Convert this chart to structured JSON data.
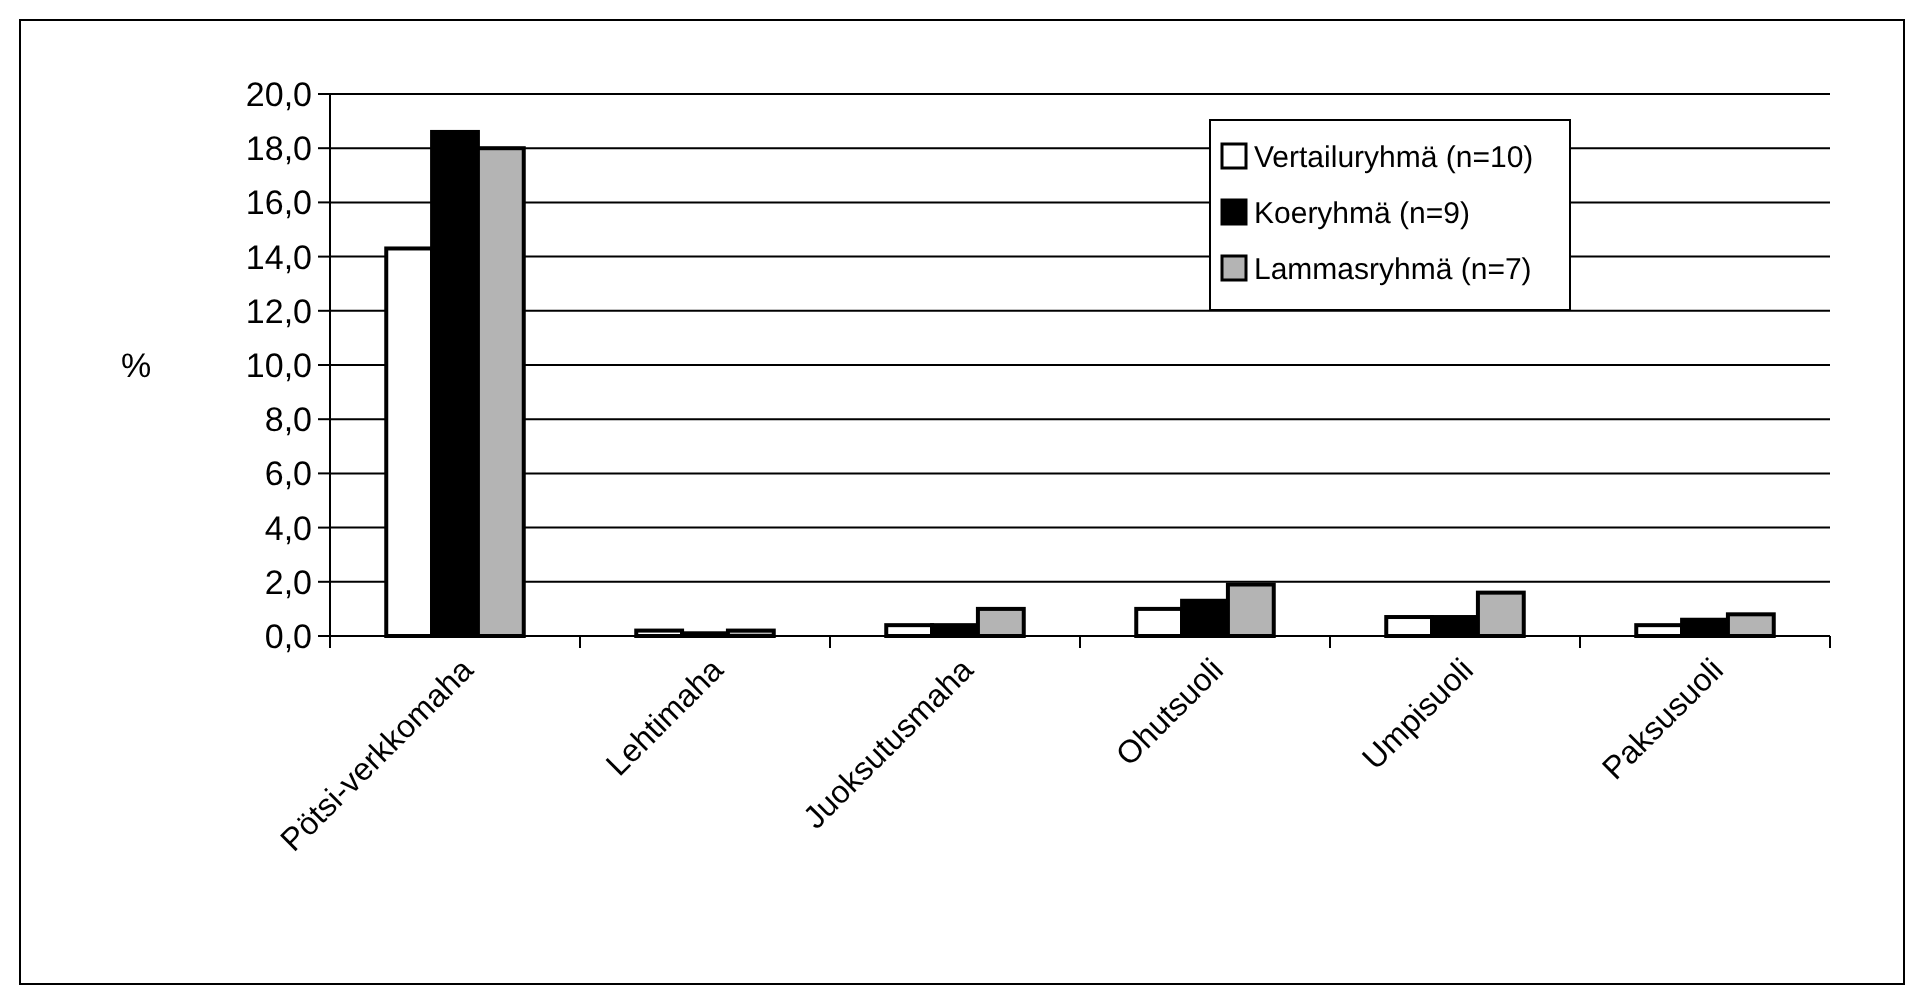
{
  "chart_data": {
    "type": "bar",
    "ylabel": "%",
    "categories": [
      "Pötsi-verkkomaha",
      "Lehtimaha",
      "Juoksutusmaha",
      "Ohutsuoli",
      "Umpisuoli",
      "Paksusuoli"
    ],
    "series": [
      {
        "name": "Vertailuryhmä (n=10)",
        "color": "#ffffff",
        "values": [
          14.3,
          0.2,
          0.4,
          1.0,
          0.7,
          0.4
        ]
      },
      {
        "name": "Koeryhmä (n=9)",
        "color": "#000000",
        "values": [
          18.6,
          0.1,
          0.4,
          1.3,
          0.7,
          0.6
        ]
      },
      {
        "name": "Lammasryhmä (n=7)",
        "color": "#b4b4b4",
        "values": [
          18.0,
          0.2,
          1.0,
          1.9,
          1.6,
          0.8
        ]
      }
    ],
    "ylim": [
      0,
      20
    ],
    "yticks": [
      {
        "value": 0,
        "label": "0,0"
      },
      {
        "value": 2,
        "label": "2,0"
      },
      {
        "value": 4,
        "label": "4,0"
      },
      {
        "value": 6,
        "label": "6,0"
      },
      {
        "value": 8,
        "label": "8,0"
      },
      {
        "value": 10,
        "label": "10,0"
      },
      {
        "value": 12,
        "label": "12,0"
      },
      {
        "value": 14,
        "label": "14,0"
      },
      {
        "value": 16,
        "label": "16,0"
      },
      {
        "value": 18,
        "label": "18,0"
      },
      {
        "value": 20,
        "label": "20,0"
      }
    ],
    "grid": "y",
    "legend": "top right"
  }
}
